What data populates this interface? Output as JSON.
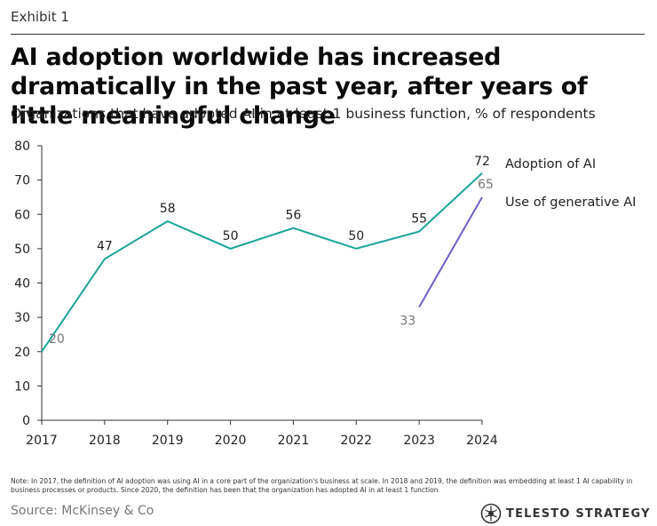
{
  "header": {
    "exhibit": "Exhibit 1",
    "title": "AI adoption worldwide has increased dramatically in the past year, after years of little meaningful change",
    "subtitle": "Organizations that have adopted AI in at least 1 business function, % of respondents"
  },
  "chart_data": {
    "type": "line",
    "x": [
      2017,
      2018,
      2019,
      2020,
      2021,
      2022,
      2023,
      2024
    ],
    "x_tick_labels": [
      "2017",
      "2018",
      "2019",
      "2020",
      "2021",
      "2022",
      "2023",
      "2024"
    ],
    "y_ticks": [
      0,
      10,
      20,
      30,
      40,
      50,
      60,
      70,
      80
    ],
    "ylim": [
      0,
      80
    ],
    "grid": false,
    "series": [
      {
        "name": "Adoption of AI",
        "color": "#1aa39a",
        "x": [
          2017,
          2018,
          2019,
          2020,
          2021,
          2022,
          2023,
          2024
        ],
        "values": [
          20,
          47,
          58,
          50,
          56,
          50,
          55,
          72
        ]
      },
      {
        "name": "Use of generative AI",
        "color": "#6b5fc7",
        "x": [
          2023,
          2024
        ],
        "values": [
          33,
          65
        ]
      }
    ]
  },
  "footer": {
    "note": "Note: In 2017, the definition of AI adoption was using AI in a core part of the organization's business at scale. In 2018 and 2019, the definition was embedding at least 1 AI capability in business processes or products. Since 2020, the definition has been that the organization has adopted AI in at least 1 function",
    "source": "Source: McKinsey & Co",
    "logo_text": "TELESTO STRATEGY",
    "logo_icon": "telesto-logo-icon"
  }
}
